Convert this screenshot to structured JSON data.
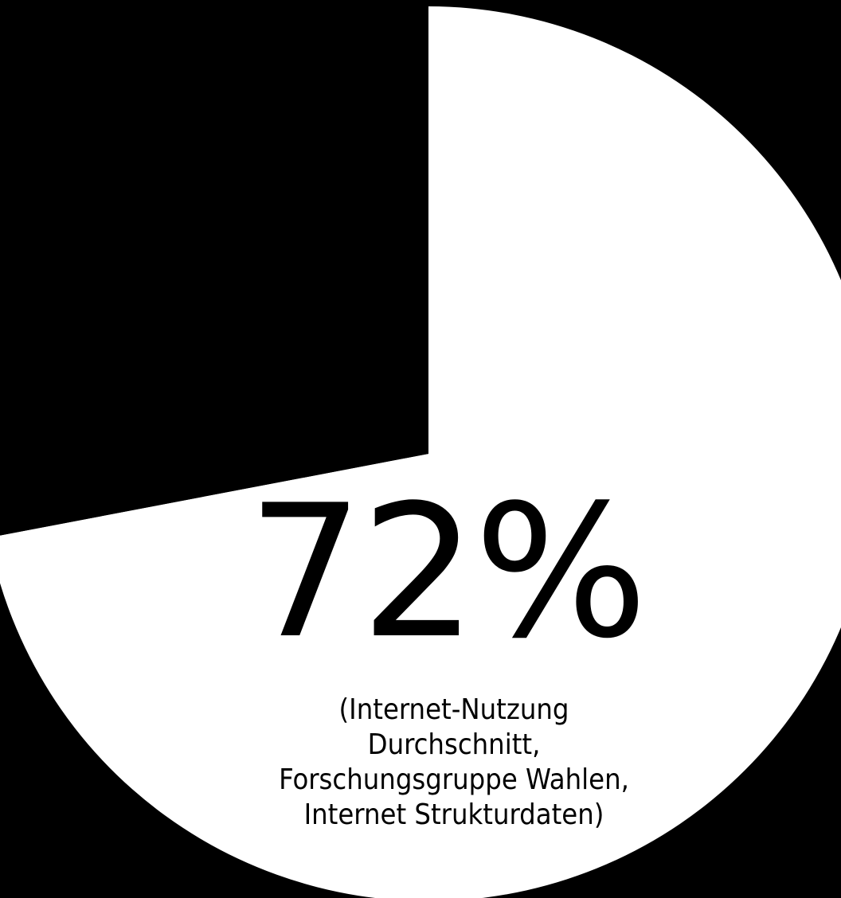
{
  "chart_data": {
    "type": "pie",
    "categories": [
      "",
      ""
    ],
    "values": [
      72,
      28
    ],
    "colors": [
      "#ffffff",
      "#000000"
    ],
    "start_angle_deg": 0,
    "direction": "clockwise",
    "value_label": "72%",
    "caption_lines": [
      "(Internet-Nutzung",
      "Durchschnitt,",
      "Forschungsgruppe Wahlen,",
      "Internet Strukturdaten)"
    ]
  },
  "colors": {
    "background": "#000000",
    "slice_main": "#ffffff",
    "text": "#000000"
  }
}
